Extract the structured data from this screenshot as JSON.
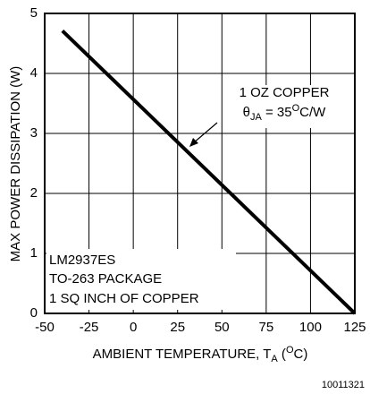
{
  "chart_data": {
    "type": "line",
    "xlabel": [
      "AMBIENT TEMPERATURE, T",
      "A",
      " (",
      "O",
      "C)"
    ],
    "ylabel": "MAX POWER DISSIPATION (W)",
    "annotation": [
      "1 OZ COPPER",
      "θ",
      "JA",
      " = 35",
      "O",
      "C/W"
    ],
    "note": [
      "LM2937ES",
      "TO-263 PACKAGE",
      "1 SQ INCH OF COPPER"
    ],
    "footer": "10011321",
    "x": [
      -40,
      125
    ],
    "series": [
      {
        "color": "#000000",
        "values": [
          4.71,
          0
        ]
      }
    ],
    "xlim": [
      -50,
      125
    ],
    "xticks": [
      -50,
      -25,
      0,
      25,
      50,
      75,
      100,
      125
    ],
    "ylim": [
      0,
      5
    ],
    "yticks": [
      0,
      1,
      2,
      3,
      4,
      5
    ],
    "grid": true
  }
}
